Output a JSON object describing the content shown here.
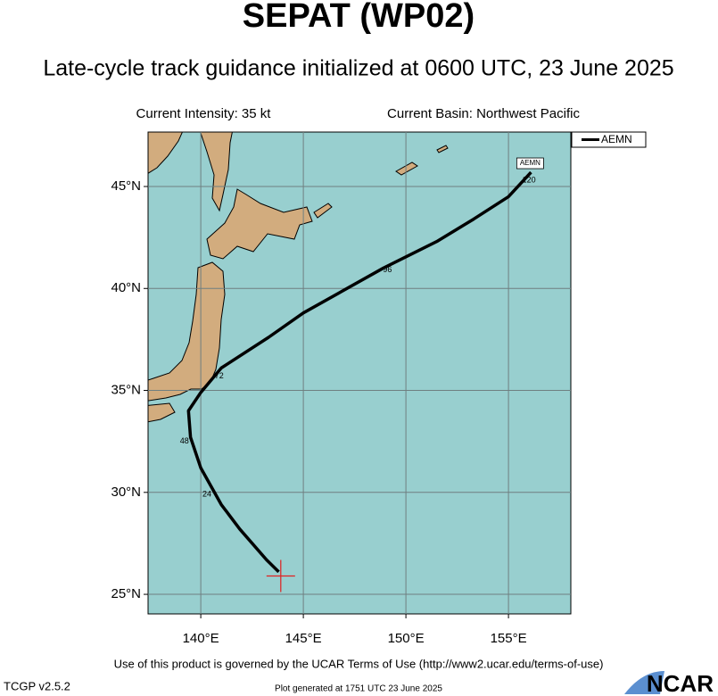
{
  "chart_data": {
    "type": "track",
    "title": "SEPAT (WP02)",
    "subtitle": "Late-cycle track guidance initialized at 0600 UTC, 23 June 2025",
    "intensity": "Current Intensity: 35 kt",
    "basin": "Current Basin: Northwest Pacific",
    "xlim": [
      137.43,
      158.04
    ],
    "ylim": [
      24.04,
      47.67
    ],
    "xticks": [
      {
        "value": 140,
        "label": "140°E"
      },
      {
        "value": 145,
        "label": "145°E"
      },
      {
        "value": 150,
        "label": "150°E"
      },
      {
        "value": 155,
        "label": "155°E"
      }
    ],
    "yticks": [
      {
        "value": 25,
        "label": "25°N"
      },
      {
        "value": 30,
        "label": "30°N"
      },
      {
        "value": 35,
        "label": "35°N"
      },
      {
        "value": 40,
        "label": "40°N"
      },
      {
        "value": 45,
        "label": "45°N"
      }
    ],
    "grid": true,
    "legend": "upper right",
    "series": [
      {
        "name": "AEMN",
        "color": "#000000",
        "x": [
          143.8,
          143.2,
          141.9,
          141.0,
          140.0,
          139.5,
          139.4,
          140.0,
          141.0,
          143.3,
          145.0,
          148.9,
          151.5,
          153.3,
          155.0,
          156.1
        ],
        "values": [
          26.1,
          26.7,
          28.2,
          29.4,
          31.2,
          32.7,
          34.0,
          34.9,
          36.1,
          37.6,
          38.8,
          41.0,
          42.3,
          43.4,
          44.5,
          45.7
        ]
      }
    ],
    "hour_labels": [
      {
        "text": "24",
        "lon": 140.3,
        "lat": 29.9
      },
      {
        "text": "48",
        "lon": 139.2,
        "lat": 32.5
      },
      {
        "text": "72",
        "lon": 140.9,
        "lat": 35.7
      },
      {
        "text": "96",
        "lon": 149.1,
        "lat": 40.9
      },
      {
        "text": "120",
        "lon": 156.0,
        "lat": 45.3
      }
    ],
    "current_position": {
      "lon": 143.9,
      "lat": 25.9,
      "color": "#e02020"
    },
    "footer": "Use of this product is governed by the UCAR Terms of Use (http://www2.ucar.edu/terms-of-use)",
    "version": "TCGP v2.5.2",
    "generated": "Plot generated at 1751 UTC   23 June 2025",
    "logo": "NCAR"
  }
}
